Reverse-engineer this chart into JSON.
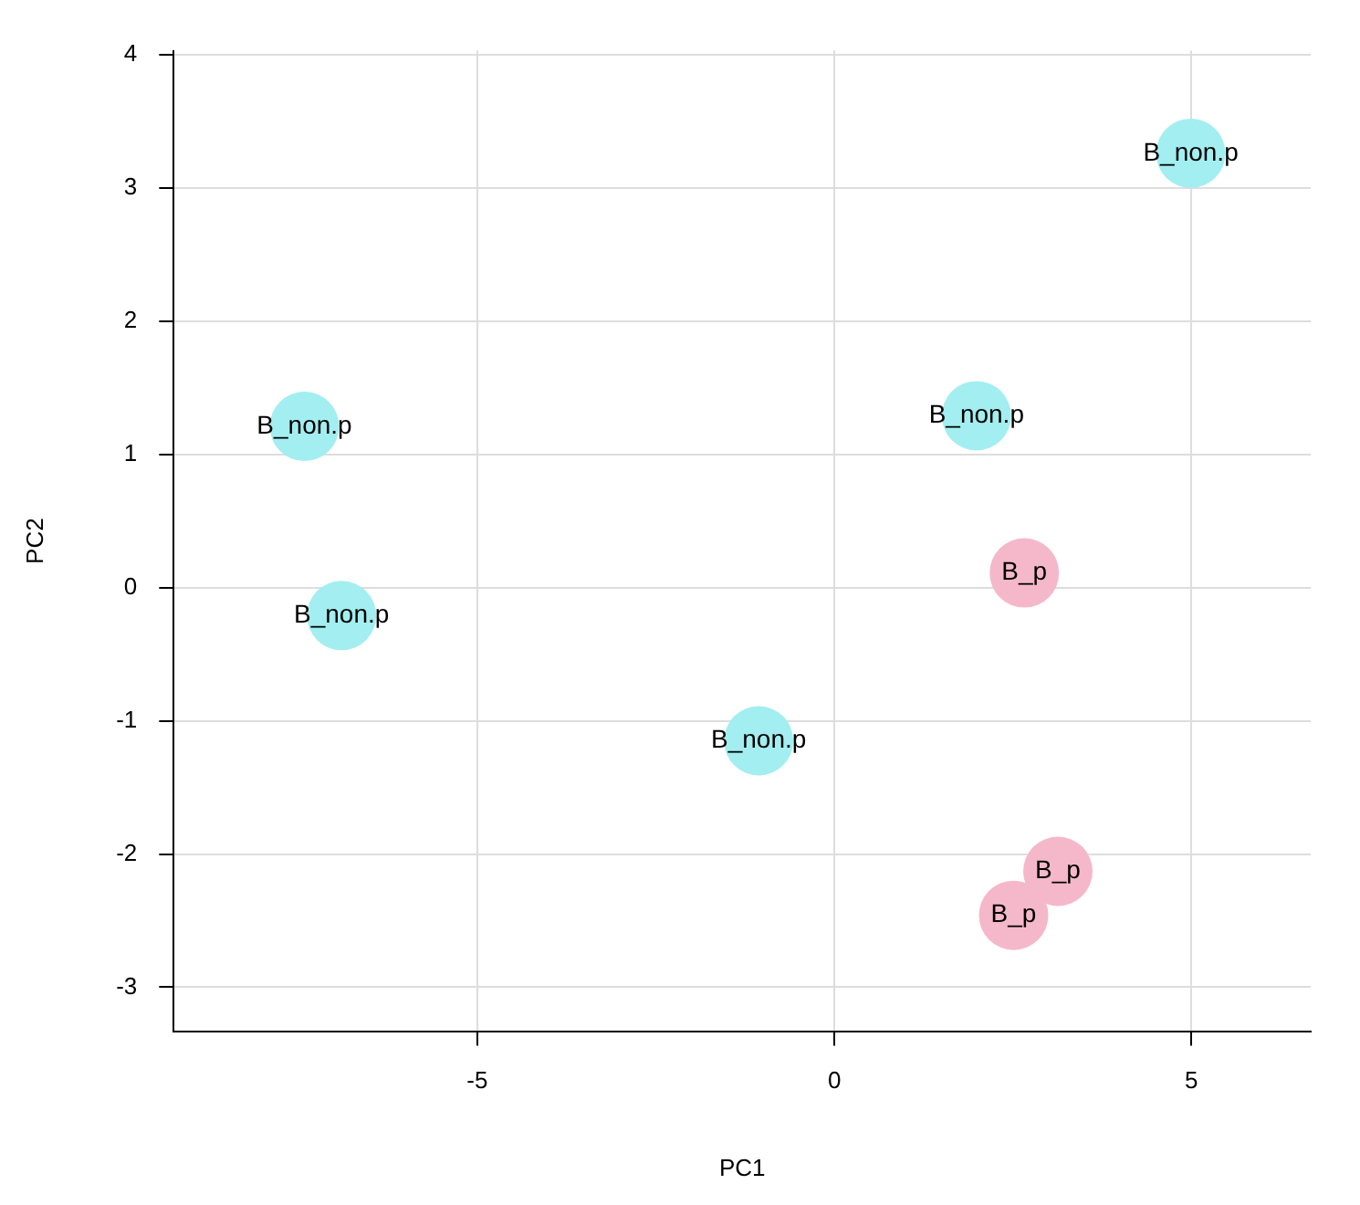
{
  "chart_data": {
    "type": "scatter",
    "xlabel": "PC1",
    "ylabel": "PC2",
    "xlim": [
      -9.25,
      6.67
    ],
    "ylim": [
      -3.33,
      4.03
    ],
    "xticks": [
      -5,
      0,
      5
    ],
    "yticks": [
      -3,
      -2,
      -1,
      0,
      1,
      2,
      3,
      4
    ],
    "grid": true,
    "legend": false,
    "marker": "circle",
    "series": [
      {
        "color": "#a3eef0",
        "x": [
          4.99,
          -7.42,
          1.99,
          -6.9,
          -1.06
        ],
        "values": [
          3.26,
          1.21,
          1.29,
          -0.21,
          -1.15
        ]
      },
      {
        "color": "#f5b8cb",
        "x": [
          2.66,
          3.13,
          2.51
        ],
        "values": [
          0.11,
          -2.13,
          -2.46
        ]
      }
    ],
    "annotations": [
      {
        "text": "B_non.p",
        "x": 4.99,
        "y": 3.26
      },
      {
        "text": "B_non.p",
        "x": -7.42,
        "y": 1.21
      },
      {
        "text": "B_non.p",
        "x": 1.99,
        "y": 1.29
      },
      {
        "text": "B_non.p",
        "x": -6.9,
        "y": -0.21
      },
      {
        "text": "B_non.p",
        "x": -1.06,
        "y": -1.15
      },
      {
        "text": "B_p",
        "x": 2.66,
        "y": 0.11
      },
      {
        "text": "B_p",
        "x": 3.13,
        "y": -2.13
      },
      {
        "text": "B_p",
        "x": 2.51,
        "y": -2.46
      }
    ]
  }
}
